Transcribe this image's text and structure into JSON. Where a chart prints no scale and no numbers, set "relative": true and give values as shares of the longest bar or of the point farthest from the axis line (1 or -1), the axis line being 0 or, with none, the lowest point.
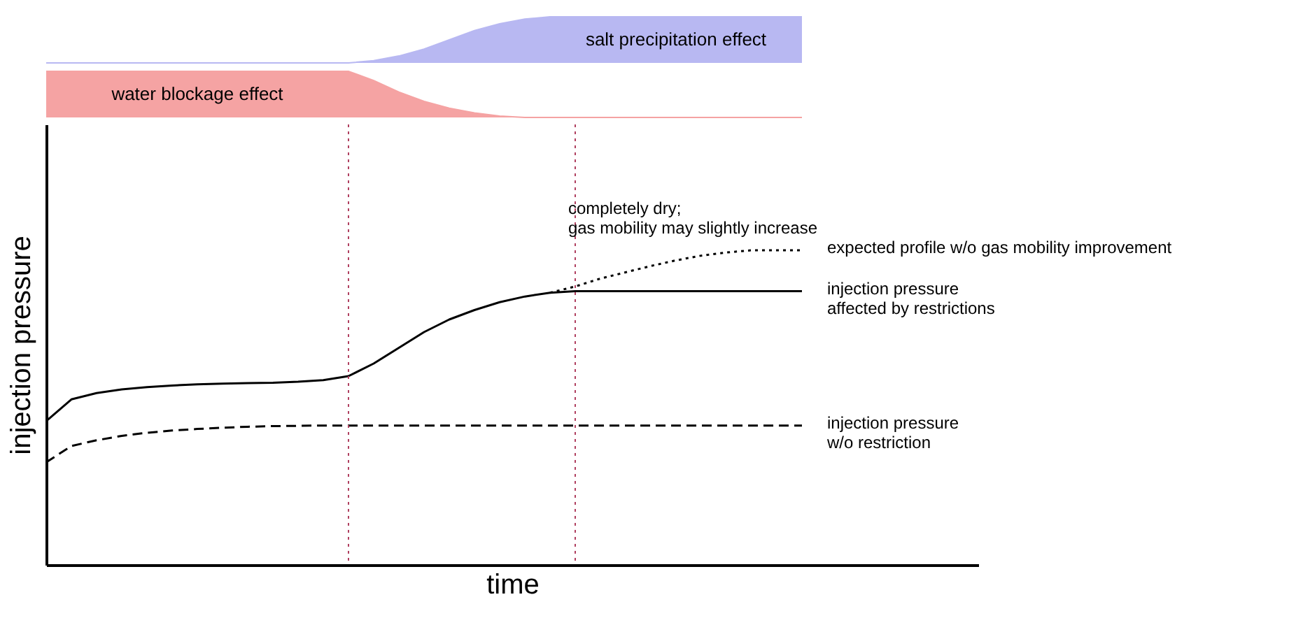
{
  "chart_data": [
    {
      "type": "area",
      "relative": true,
      "categories": [
        null,
        null,
        null,
        null,
        null,
        null,
        null,
        null,
        null,
        null,
        null,
        null,
        null,
        null,
        null,
        null,
        null,
        null,
        null,
        null,
        null,
        null,
        null,
        null,
        null,
        null,
        null,
        null,
        null,
        null,
        null,
        null,
        null,
        null,
        null,
        null,
        null,
        null
      ],
      "series": [
        {
          "name": "salt precipitation effect",
          "color": "#b8b8f2",
          "values": [
            0,
            0,
            0,
            0,
            0,
            0,
            0,
            0,
            0,
            0,
            0,
            0,
            0,
            0.05,
            0.15,
            0.3,
            0.5,
            0.7,
            0.85,
            0.95,
            1,
            1,
            1,
            1,
            1,
            1,
            1,
            1,
            1,
            1,
            1,
            null,
            null,
            null,
            null,
            null,
            null,
            null
          ]
        }
      ]
    },
    {
      "type": "area",
      "relative": true,
      "categories": [
        null,
        null,
        null,
        null,
        null,
        null,
        null,
        null,
        null,
        null,
        null,
        null,
        null,
        null,
        null,
        null,
        null,
        null,
        null,
        null,
        null,
        null,
        null,
        null,
        null,
        null,
        null,
        null,
        null,
        null,
        null,
        null,
        null,
        null,
        null,
        null,
        null,
        null
      ],
      "series": [
        {
          "name": "water blockage effect",
          "color": "#f5a3a3",
          "values": [
            1,
            1,
            1,
            1,
            1,
            1,
            1,
            1,
            1,
            1,
            1,
            1,
            1,
            0.8,
            0.55,
            0.35,
            0.2,
            0.1,
            0.03,
            0,
            0,
            0,
            0,
            0,
            0,
            0,
            0,
            0,
            0,
            0,
            0,
            null,
            null,
            null,
            null,
            null,
            null,
            null
          ]
        }
      ]
    },
    {
      "type": "line",
      "relative": true,
      "categories": [
        null,
        null,
        null,
        null,
        null,
        null,
        null,
        null,
        null,
        null,
        null,
        null,
        null,
        null,
        null,
        null,
        null,
        null,
        null,
        null,
        null,
        null,
        null,
        null,
        null,
        null,
        null,
        null,
        null,
        null,
        null,
        null,
        null,
        null,
        null,
        null,
        null,
        null
      ],
      "xlabel": "time",
      "ylabel": "injection pressure",
      "annotations": [
        "completely dry;\ngas mobility may slightly increase"
      ],
      "series": [
        {
          "name": "expected profile w/o gas mobility improvement",
          "color": "#000000",
          "line_style": "dotted",
          "values": [
            null,
            null,
            null,
            null,
            null,
            null,
            null,
            null,
            null,
            null,
            null,
            null,
            null,
            null,
            null,
            null,
            null,
            null,
            null,
            null,
            0.865,
            0.885,
            0.91,
            0.93,
            0.95,
            0.968,
            0.983,
            0.993,
            1,
            1,
            1,
            null,
            null,
            null,
            null,
            null,
            null,
            null
          ]
        },
        {
          "name": "injection pressure\naffected by restrictions",
          "color": "#000000",
          "line_style": "solid",
          "values": [
            0.457,
            0.526,
            0.546,
            0.558,
            0.565,
            0.57,
            0.574,
            0.576,
            0.578,
            0.579,
            0.582,
            0.587,
            0.6,
            0.64,
            0.69,
            0.74,
            0.78,
            0.81,
            0.835,
            0.853,
            0.865,
            0.87,
            0.87,
            0.87,
            0.87,
            0.87,
            0.87,
            0.87,
            0.87,
            0.87,
            0.87,
            null,
            null,
            null,
            null,
            null,
            null,
            null
          ]
        },
        {
          "name": "injection pressure\nw/o restriction",
          "color": "#000000",
          "line_style": "dashed",
          "values": [
            0.326,
            0.378,
            0.396,
            0.41,
            0.42,
            0.427,
            0.432,
            0.436,
            0.439,
            0.441,
            0.442,
            0.443,
            0.443,
            0.443,
            0.443,
            0.443,
            0.443,
            0.443,
            0.443,
            0.443,
            0.443,
            0.443,
            0.443,
            0.443,
            0.443,
            0.443,
            0.443,
            0.443,
            0.443,
            0.443,
            0.443,
            null,
            null,
            null,
            null,
            null,
            null,
            null
          ]
        }
      ]
    }
  ]
}
